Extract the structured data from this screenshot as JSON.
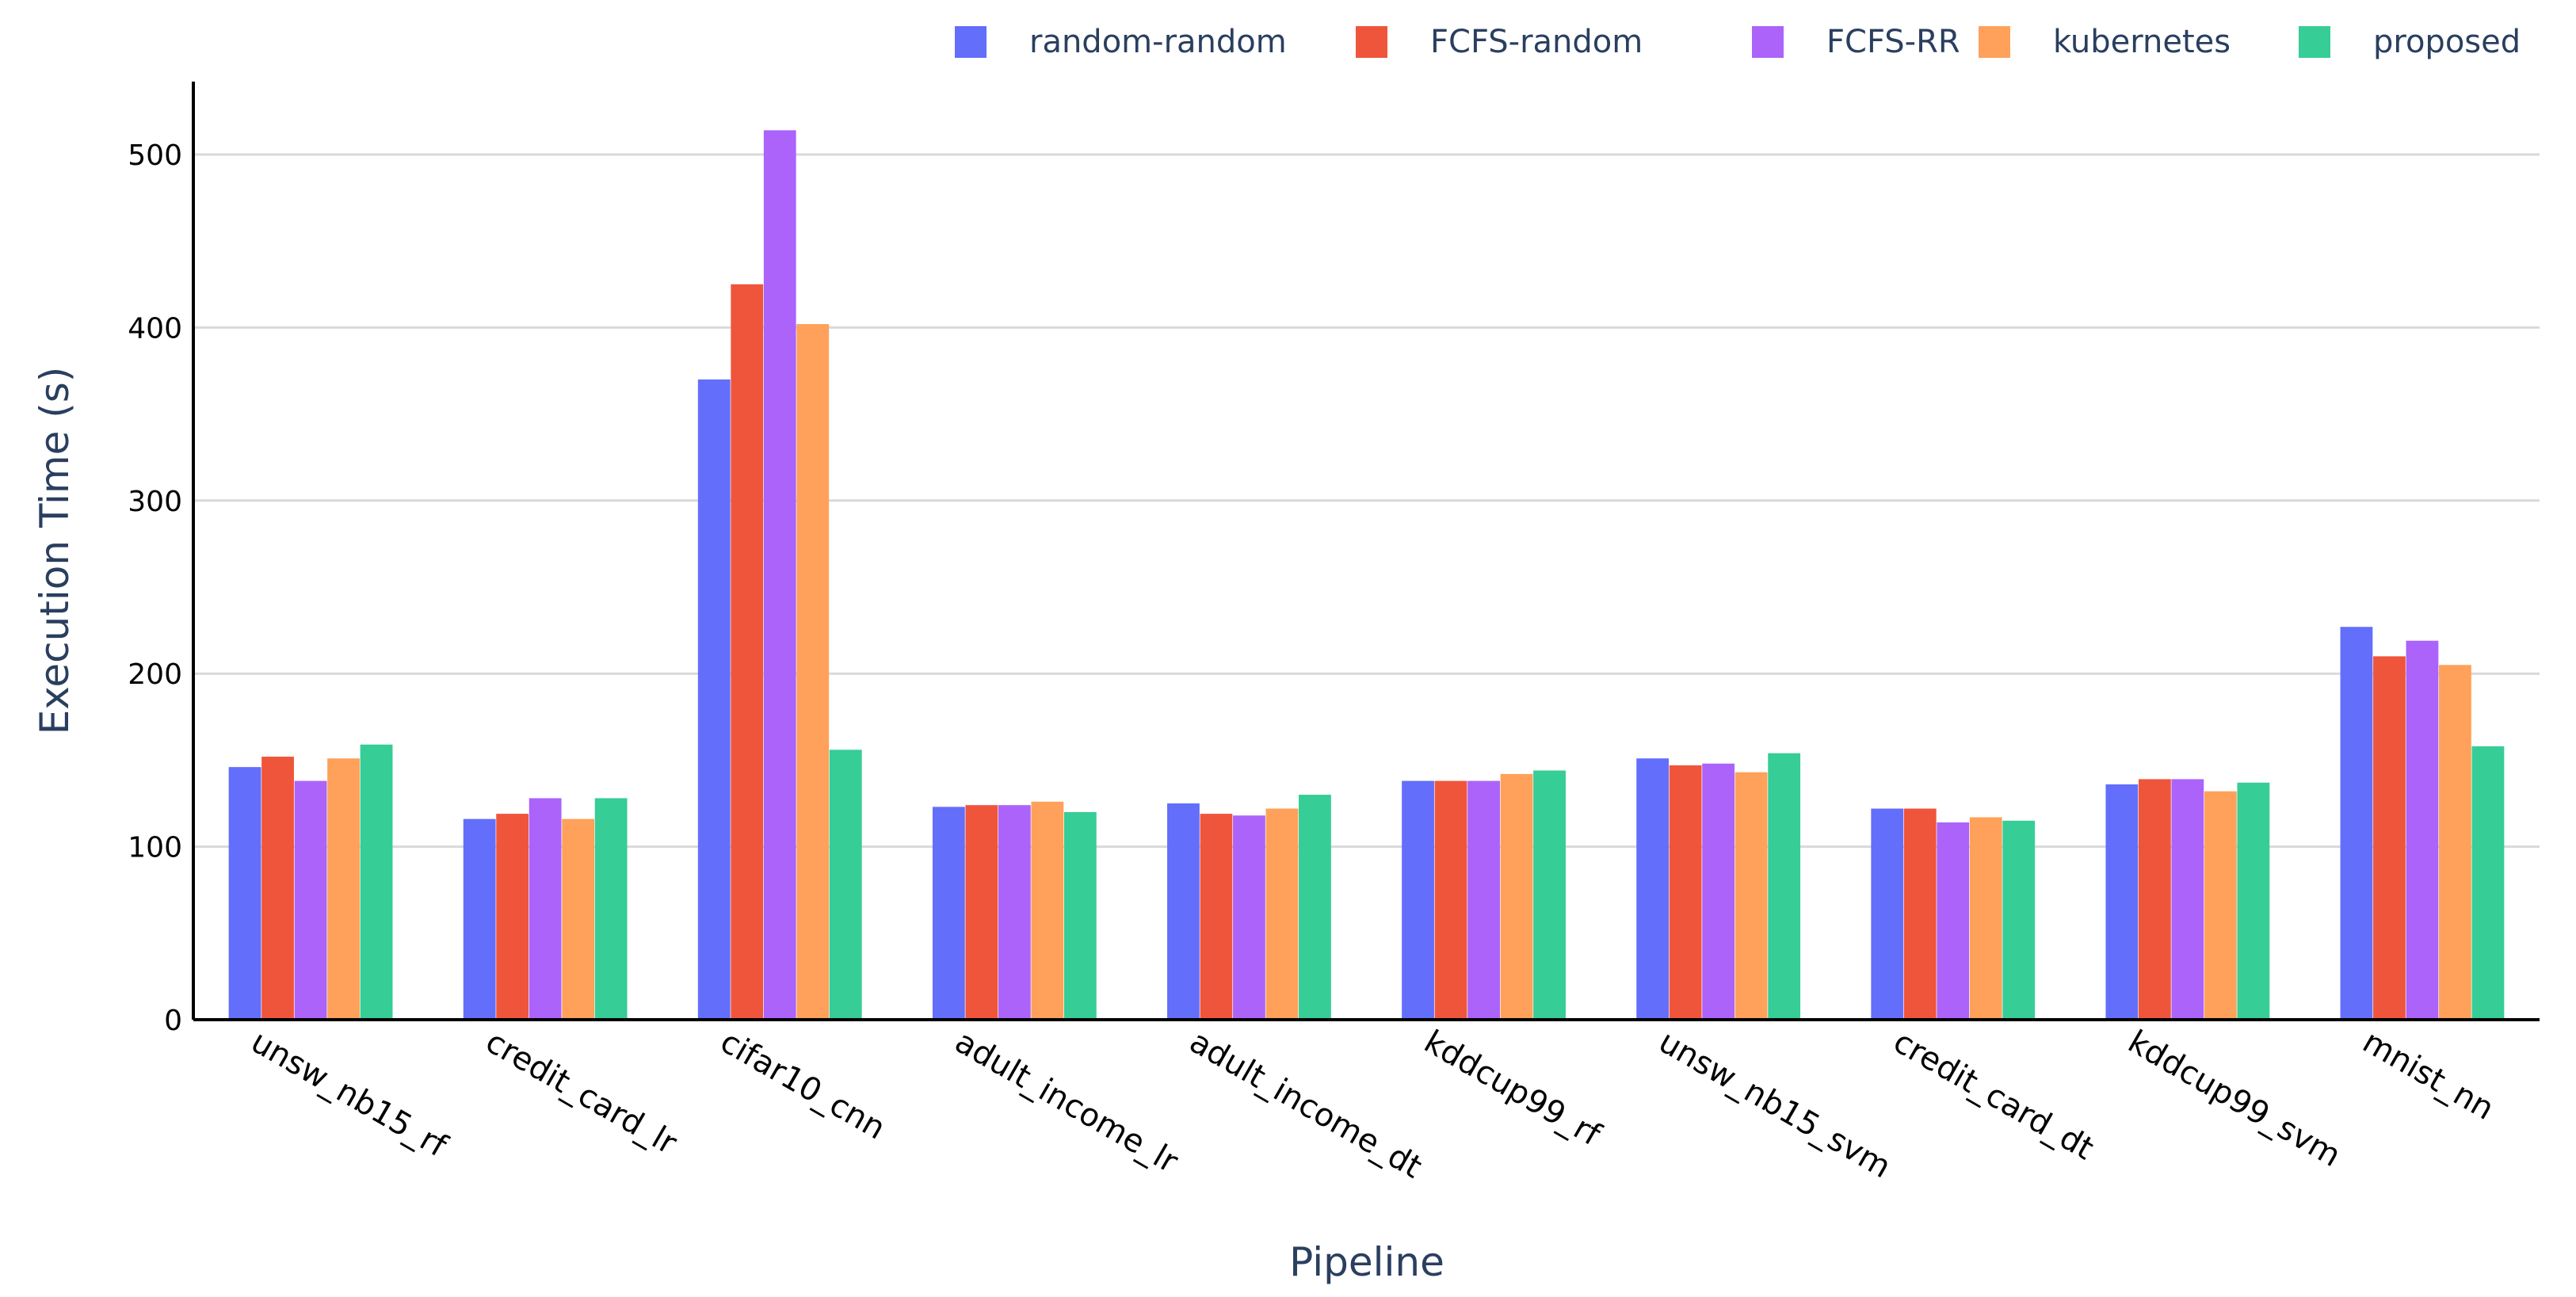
{
  "chart_data": {
    "type": "bar",
    "title": "",
    "xlabel": "Pipeline",
    "ylabel": "Execution Time (s)",
    "ylim": [
      0,
      540
    ],
    "yticks": [
      0,
      100,
      200,
      300,
      400,
      500
    ],
    "grid": true,
    "legend_position": "top-right",
    "categories": [
      "unsw_nb15_rf",
      "credit_card_lr",
      "cifar10_cnn",
      "adult_income_lr",
      "adult_income_dt",
      "kddcup99_rf",
      "unsw_nb15_svm",
      "credit_card_dt",
      "kddcup99_svm",
      "mnist_nn"
    ],
    "series": [
      {
        "name": "random-random",
        "color": "#636efa",
        "values": [
          146,
          116,
          370,
          123,
          125,
          138,
          151,
          122,
          136,
          227
        ]
      },
      {
        "name": "FCFS-random",
        "color": "#ef553b",
        "values": [
          152,
          119,
          425,
          124,
          119,
          138,
          147,
          122,
          139,
          210
        ]
      },
      {
        "name": "FCFS-RR",
        "color": "#ab63fa",
        "values": [
          138,
          128,
          514,
          124,
          118,
          138,
          148,
          114,
          139,
          219
        ]
      },
      {
        "name": "kubernetes",
        "color": "#ffa15a",
        "values": [
          151,
          116,
          402,
          126,
          122,
          142,
          143,
          117,
          132,
          205
        ]
      },
      {
        "name": "proposed",
        "color": "#36cd96",
        "values": [
          159,
          128,
          156,
          120,
          130,
          144,
          154,
          115,
          137,
          158
        ]
      }
    ]
  }
}
